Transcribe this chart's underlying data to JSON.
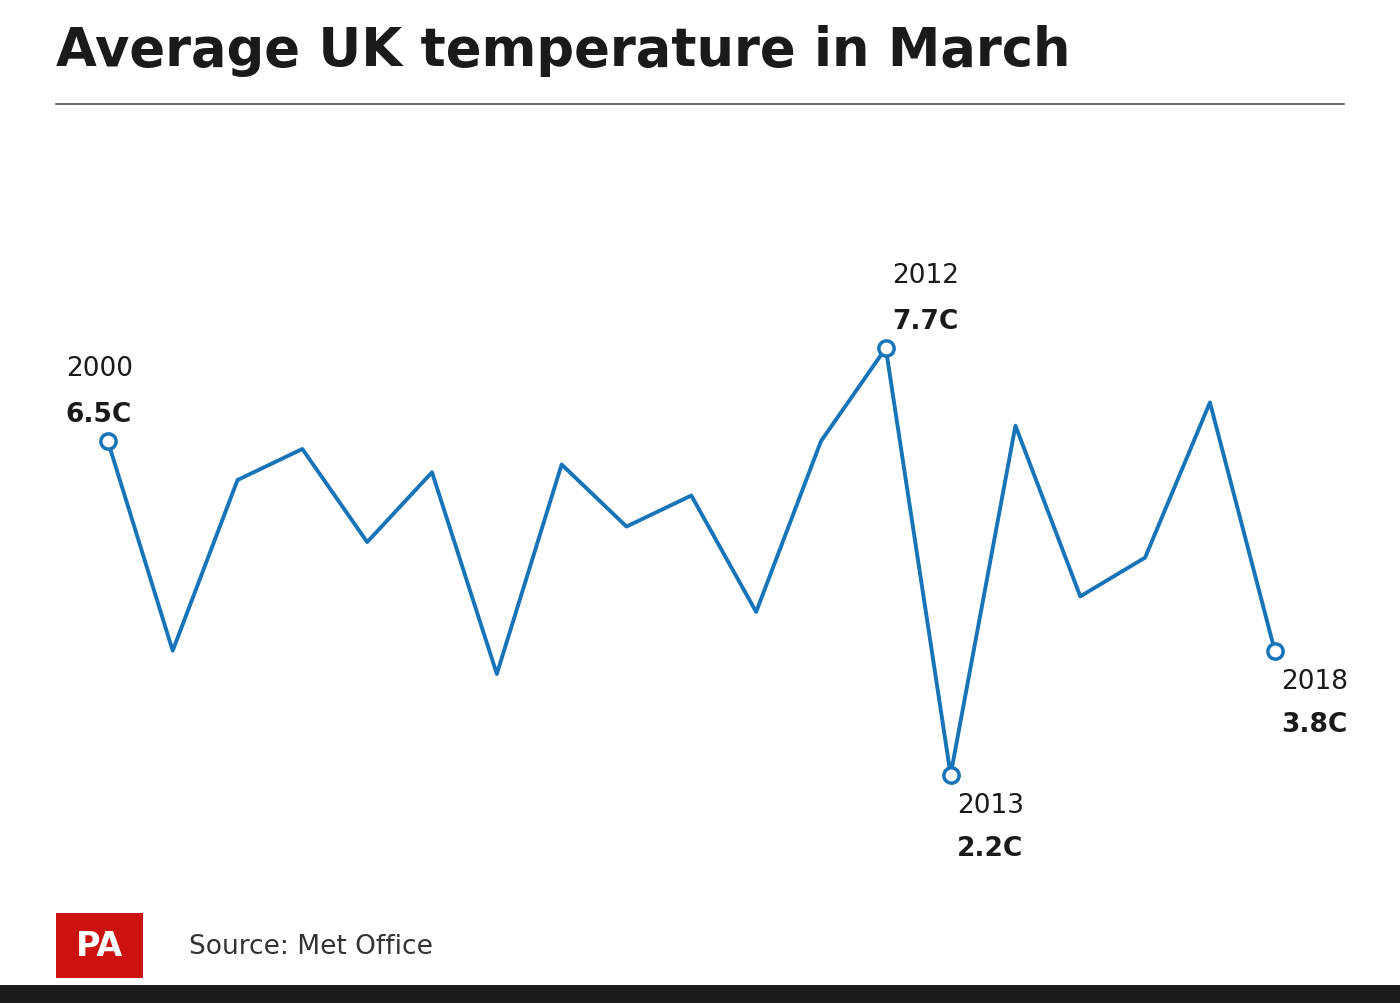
{
  "title": "Average UK temperature in March",
  "years": [
    2000,
    2001,
    2002,
    2003,
    2004,
    2005,
    2006,
    2007,
    2008,
    2009,
    2010,
    2011,
    2012,
    2013,
    2014,
    2015,
    2016,
    2017,
    2018
  ],
  "temps": [
    6.5,
    3.8,
    6.0,
    6.4,
    5.2,
    6.1,
    3.5,
    6.2,
    5.4,
    5.8,
    4.3,
    6.5,
    7.7,
    2.2,
    6.7,
    4.5,
    5.0,
    7.0,
    3.8
  ],
  "annotated_points": [
    {
      "year": 2000,
      "temp": 6.5,
      "label_year": "2000",
      "label_temp": "6.5C"
    },
    {
      "year": 2012,
      "temp": 7.7,
      "label_year": "2012",
      "label_temp": "7.7C"
    },
    {
      "year": 2013,
      "temp": 2.2,
      "label_year": "2013",
      "label_temp": "2.2C"
    },
    {
      "year": 2018,
      "temp": 3.8,
      "label_year": "2018",
      "label_temp": "3.8C"
    }
  ],
  "line_color": "#1874b8",
  "marker_fill": "#ffffff",
  "marker_edge": "#1874b8",
  "background_color": "#ffffff",
  "title_color": "#1a1a1a",
  "annotation_color": "#1a1a1a",
  "source_text": "Source: Met Office",
  "pa_logo_color": "#cc1111",
  "ylim": [
    1.2,
    10.0
  ],
  "xlim": [
    1999.2,
    2019.5
  ]
}
